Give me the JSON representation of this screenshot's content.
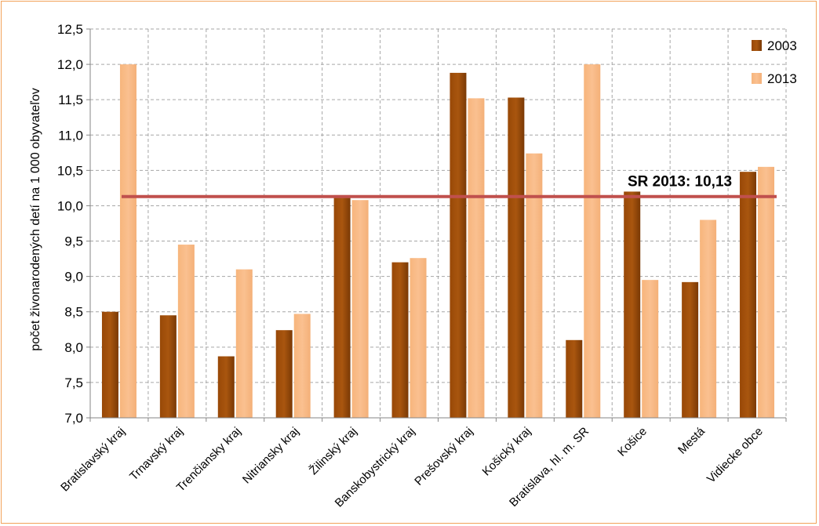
{
  "chart_data": {
    "type": "bar",
    "ylabel": "počet živonarodených detí na 1 000 obyvateľov",
    "ylim": [
      7.0,
      12.5
    ],
    "yticks": [
      "7,0",
      "7,5",
      "8,0",
      "8,5",
      "9,0",
      "9,5",
      "10,0",
      "10,5",
      "11,0",
      "11,5",
      "12,0",
      "12,5"
    ],
    "ytick_values": [
      7.0,
      7.5,
      8.0,
      8.5,
      9.0,
      9.5,
      10.0,
      10.5,
      11.0,
      11.5,
      12.0,
      12.5
    ],
    "grid": true,
    "legend_position": "top-right",
    "categories": [
      "Bratislavský kraj",
      "Trnavský kraj",
      "Trenčiansky kraj",
      "Nitriansky kraj",
      "Žilinský kraj",
      "Banskobystrický kraj",
      "Prešovský kraj",
      "Košický kraj",
      "Bratislava, hl. m. SR",
      "Košice",
      "Mestá",
      "Vidiecke obce"
    ],
    "series": [
      {
        "name": "2003",
        "color": "#984807",
        "values": [
          8.5,
          8.45,
          7.87,
          8.24,
          10.15,
          9.2,
          11.88,
          11.53,
          8.1,
          10.2,
          8.92,
          10.48
        ]
      },
      {
        "name": "2013",
        "color": "#fac090",
        "values": [
          12.0,
          9.45,
          9.1,
          8.47,
          10.08,
          9.26,
          11.52,
          10.74,
          12.0,
          8.95,
          9.8,
          10.55
        ]
      }
    ],
    "reference_line": {
      "label": "SR 2013: 10,13",
      "value": 10.13,
      "color": "#c0504d"
    }
  }
}
